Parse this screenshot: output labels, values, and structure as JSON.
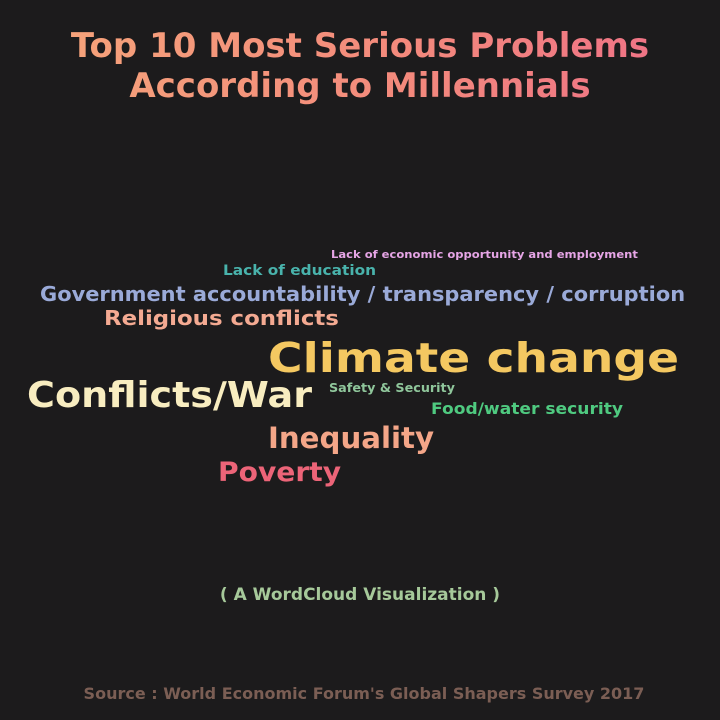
{
  "title_lines": [
    "Top 10 Most Serious Problems",
    "According to Millennials"
  ],
  "subtitle": "( A WordCloud Visualization )",
  "source": "Source : World Economic Forum's Global Shapers Survey 2017",
  "colors": {
    "background": "#1c1b1c",
    "title_gradient": [
      "#f6a77a",
      "#ee6e88"
    ],
    "subtitle": "#a6c99a",
    "source": "#7b5e54"
  },
  "chart_data": {
    "type": "wordcloud",
    "title": "Top 10 Most Serious Problems According to Millennials",
    "words": [
      {
        "text": "Lack of economic opportunity and employment",
        "color": "#e6a5e6"
      },
      {
        "text": "Lack of education",
        "color": "#49b3ac"
      },
      {
        "text": "Government accountability / transparency / corruption",
        "color": "#9aaad8"
      },
      {
        "text": "Religious conflicts",
        "color": "#f4aa92"
      },
      {
        "text": "Climate change",
        "color": "#f4c861"
      },
      {
        "text": "Conflicts/War",
        "color": "#f8edc0"
      },
      {
        "text": "Safety & Security",
        "color": "#8fc69b"
      },
      {
        "text": "Food/water security",
        "color": "#4fca80"
      },
      {
        "text": "Inequality",
        "color": "#f4a688"
      },
      {
        "text": "Poverty",
        "color": "#ec6478"
      }
    ]
  }
}
